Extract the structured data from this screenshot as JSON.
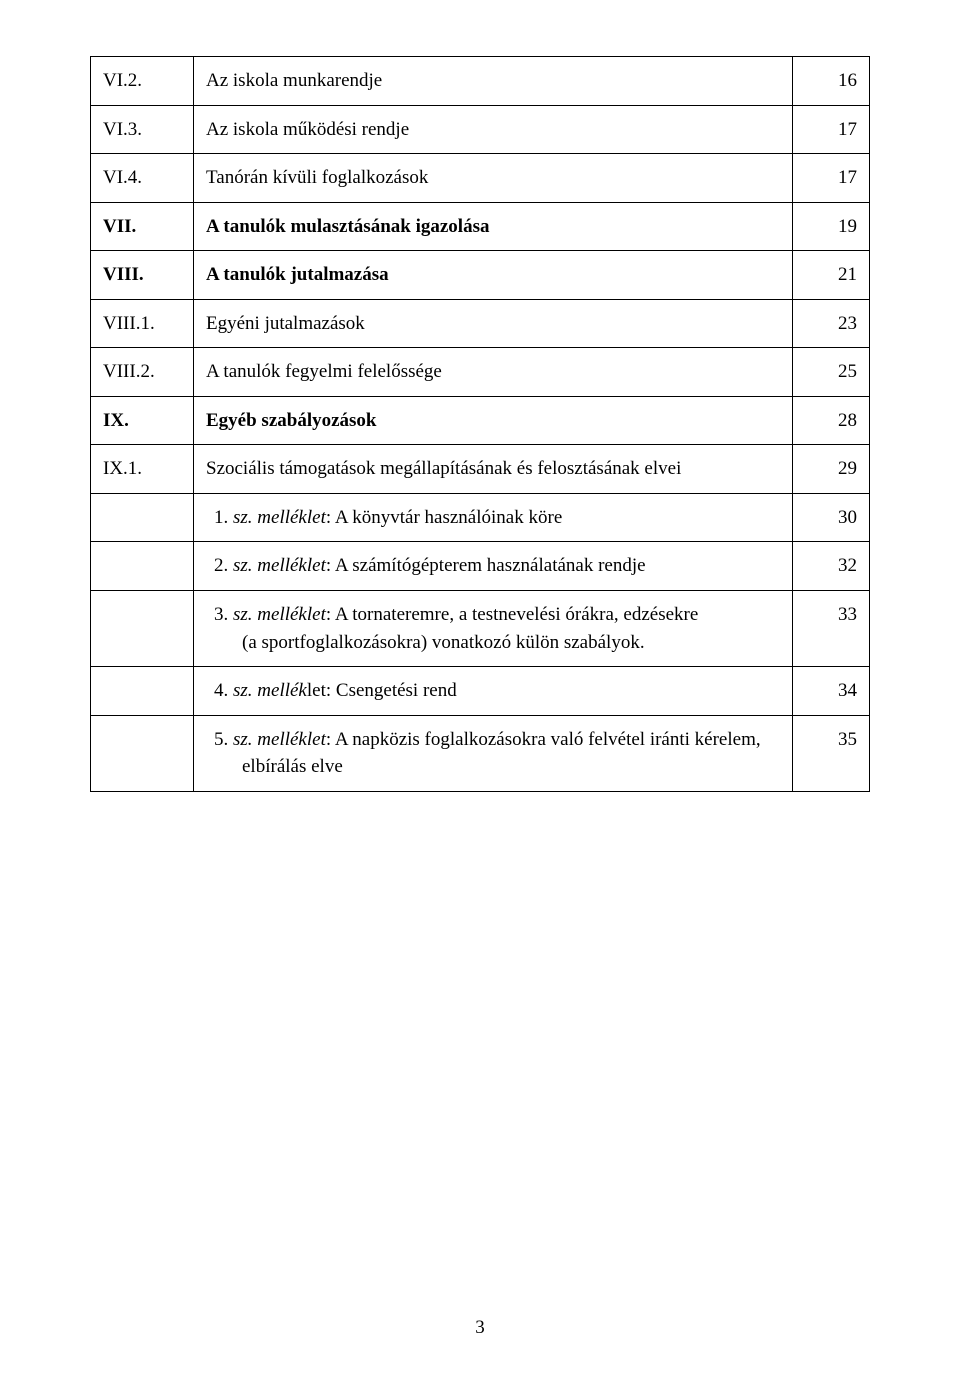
{
  "rows": [
    {
      "num": "VI.2.",
      "text": "Az iskola munkarendje",
      "page": "16",
      "num_class": "",
      "text_class": ""
    },
    {
      "num": "VI.3.",
      "text": "Az iskola működési rendje",
      "page": "17",
      "num_class": "",
      "text_class": ""
    },
    {
      "num": "VI.4.",
      "text": "Tanórán kívüli foglalkozások",
      "page": "17",
      "num_class": "",
      "text_class": ""
    },
    {
      "num": "VII.",
      "text": "A tanulók mulasztásának igazolása",
      "page": "19",
      "num_class": "bold",
      "text_class": "bold"
    },
    {
      "num": "VIII.",
      "text": "A tanulók jutalmazása",
      "page": "21",
      "num_class": "bold",
      "text_class": "bold"
    },
    {
      "num": "VIII.1.",
      "text": "Egyéni jutalmazások",
      "page": "23",
      "num_class": "",
      "text_class": ""
    },
    {
      "num": "VIII.2.",
      "text": "A tanulók fegyelmi felelőssége",
      "page": "25",
      "num_class": "",
      "text_class": ""
    },
    {
      "num": "IX.",
      "text": "Egyéb szabályozások",
      "page": "28",
      "num_class": "bold",
      "text_class": "bold"
    },
    {
      "num": "IX.1.",
      "text": "Szociális támogatások megállapításának és felosztásának elvei",
      "page": "29",
      "num_class": "",
      "text_class": ""
    }
  ],
  "attachments": [
    {
      "idx": "1.",
      "prefix": "sz. melléklet",
      "rest": ": A könyvtár használóinak köre",
      "page": "30"
    },
    {
      "idx": "2.",
      "prefix": "sz. melléklet",
      "rest": ": A számítógépterem használatának rendje",
      "page": "32"
    },
    {
      "idx": "3.",
      "prefix": "sz. melléklet",
      "rest": ": A tornateremre, a testnevelési órákra, edzésekre\n(a sportfoglalkozásokra) vonatkozó külön szabályok.",
      "page": "33"
    },
    {
      "idx": "4.",
      "prefix": "sz. mellék",
      "rest": "let: Csengetési rend",
      "page": "34"
    },
    {
      "idx": "5.",
      "prefix": "sz. melléklet",
      "rest": ": A napközis foglalkozásokra való felvétel iránti kérelem,\nelbírálás elve",
      "page": "35"
    }
  ],
  "pageNumber": "3"
}
